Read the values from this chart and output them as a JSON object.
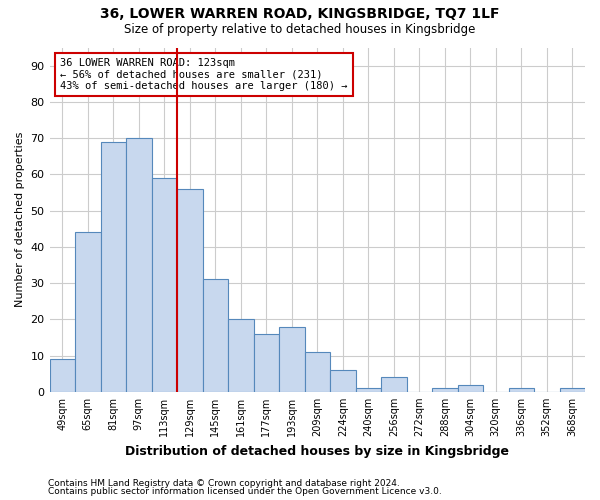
{
  "title1": "36, LOWER WARREN ROAD, KINGSBRIDGE, TQ7 1LF",
  "title2": "Size of property relative to detached houses in Kingsbridge",
  "xlabel": "Distribution of detached houses by size in Kingsbridge",
  "ylabel": "Number of detached properties",
  "footer1": "Contains HM Land Registry data © Crown copyright and database right 2024.",
  "footer2": "Contains public sector information licensed under the Open Government Licence v3.0.",
  "categories": [
    "49sqm",
    "65sqm",
    "81sqm",
    "97sqm",
    "113sqm",
    "129sqm",
    "145sqm",
    "161sqm",
    "177sqm",
    "193sqm",
    "209sqm",
    "224sqm",
    "240sqm",
    "256sqm",
    "272sqm",
    "288sqm",
    "304sqm",
    "320sqm",
    "336sqm",
    "352sqm",
    "368sqm"
  ],
  "values": [
    9,
    44,
    69,
    70,
    59,
    56,
    31,
    20,
    16,
    18,
    11,
    6,
    1,
    4,
    0,
    1,
    2,
    0,
    1,
    0,
    1
  ],
  "bar_color": "#c8d8ee",
  "bar_edge_color": "#5588bb",
  "vline_x": 4.5,
  "annotation_line1": "36 LOWER WARREN ROAD: 123sqm",
  "annotation_line2": "← 56% of detached houses are smaller (231)",
  "annotation_line3": "43% of semi-detached houses are larger (180) →",
  "vline_color": "#cc0000",
  "annotation_box_edge": "#cc0000",
  "ylim": [
    0,
    95
  ],
  "yticks": [
    0,
    10,
    20,
    30,
    40,
    50,
    60,
    70,
    80,
    90
  ],
  "bg_color": "#ffffff",
  "plot_bg_color": "#ffffff",
  "grid_color": "#cccccc"
}
